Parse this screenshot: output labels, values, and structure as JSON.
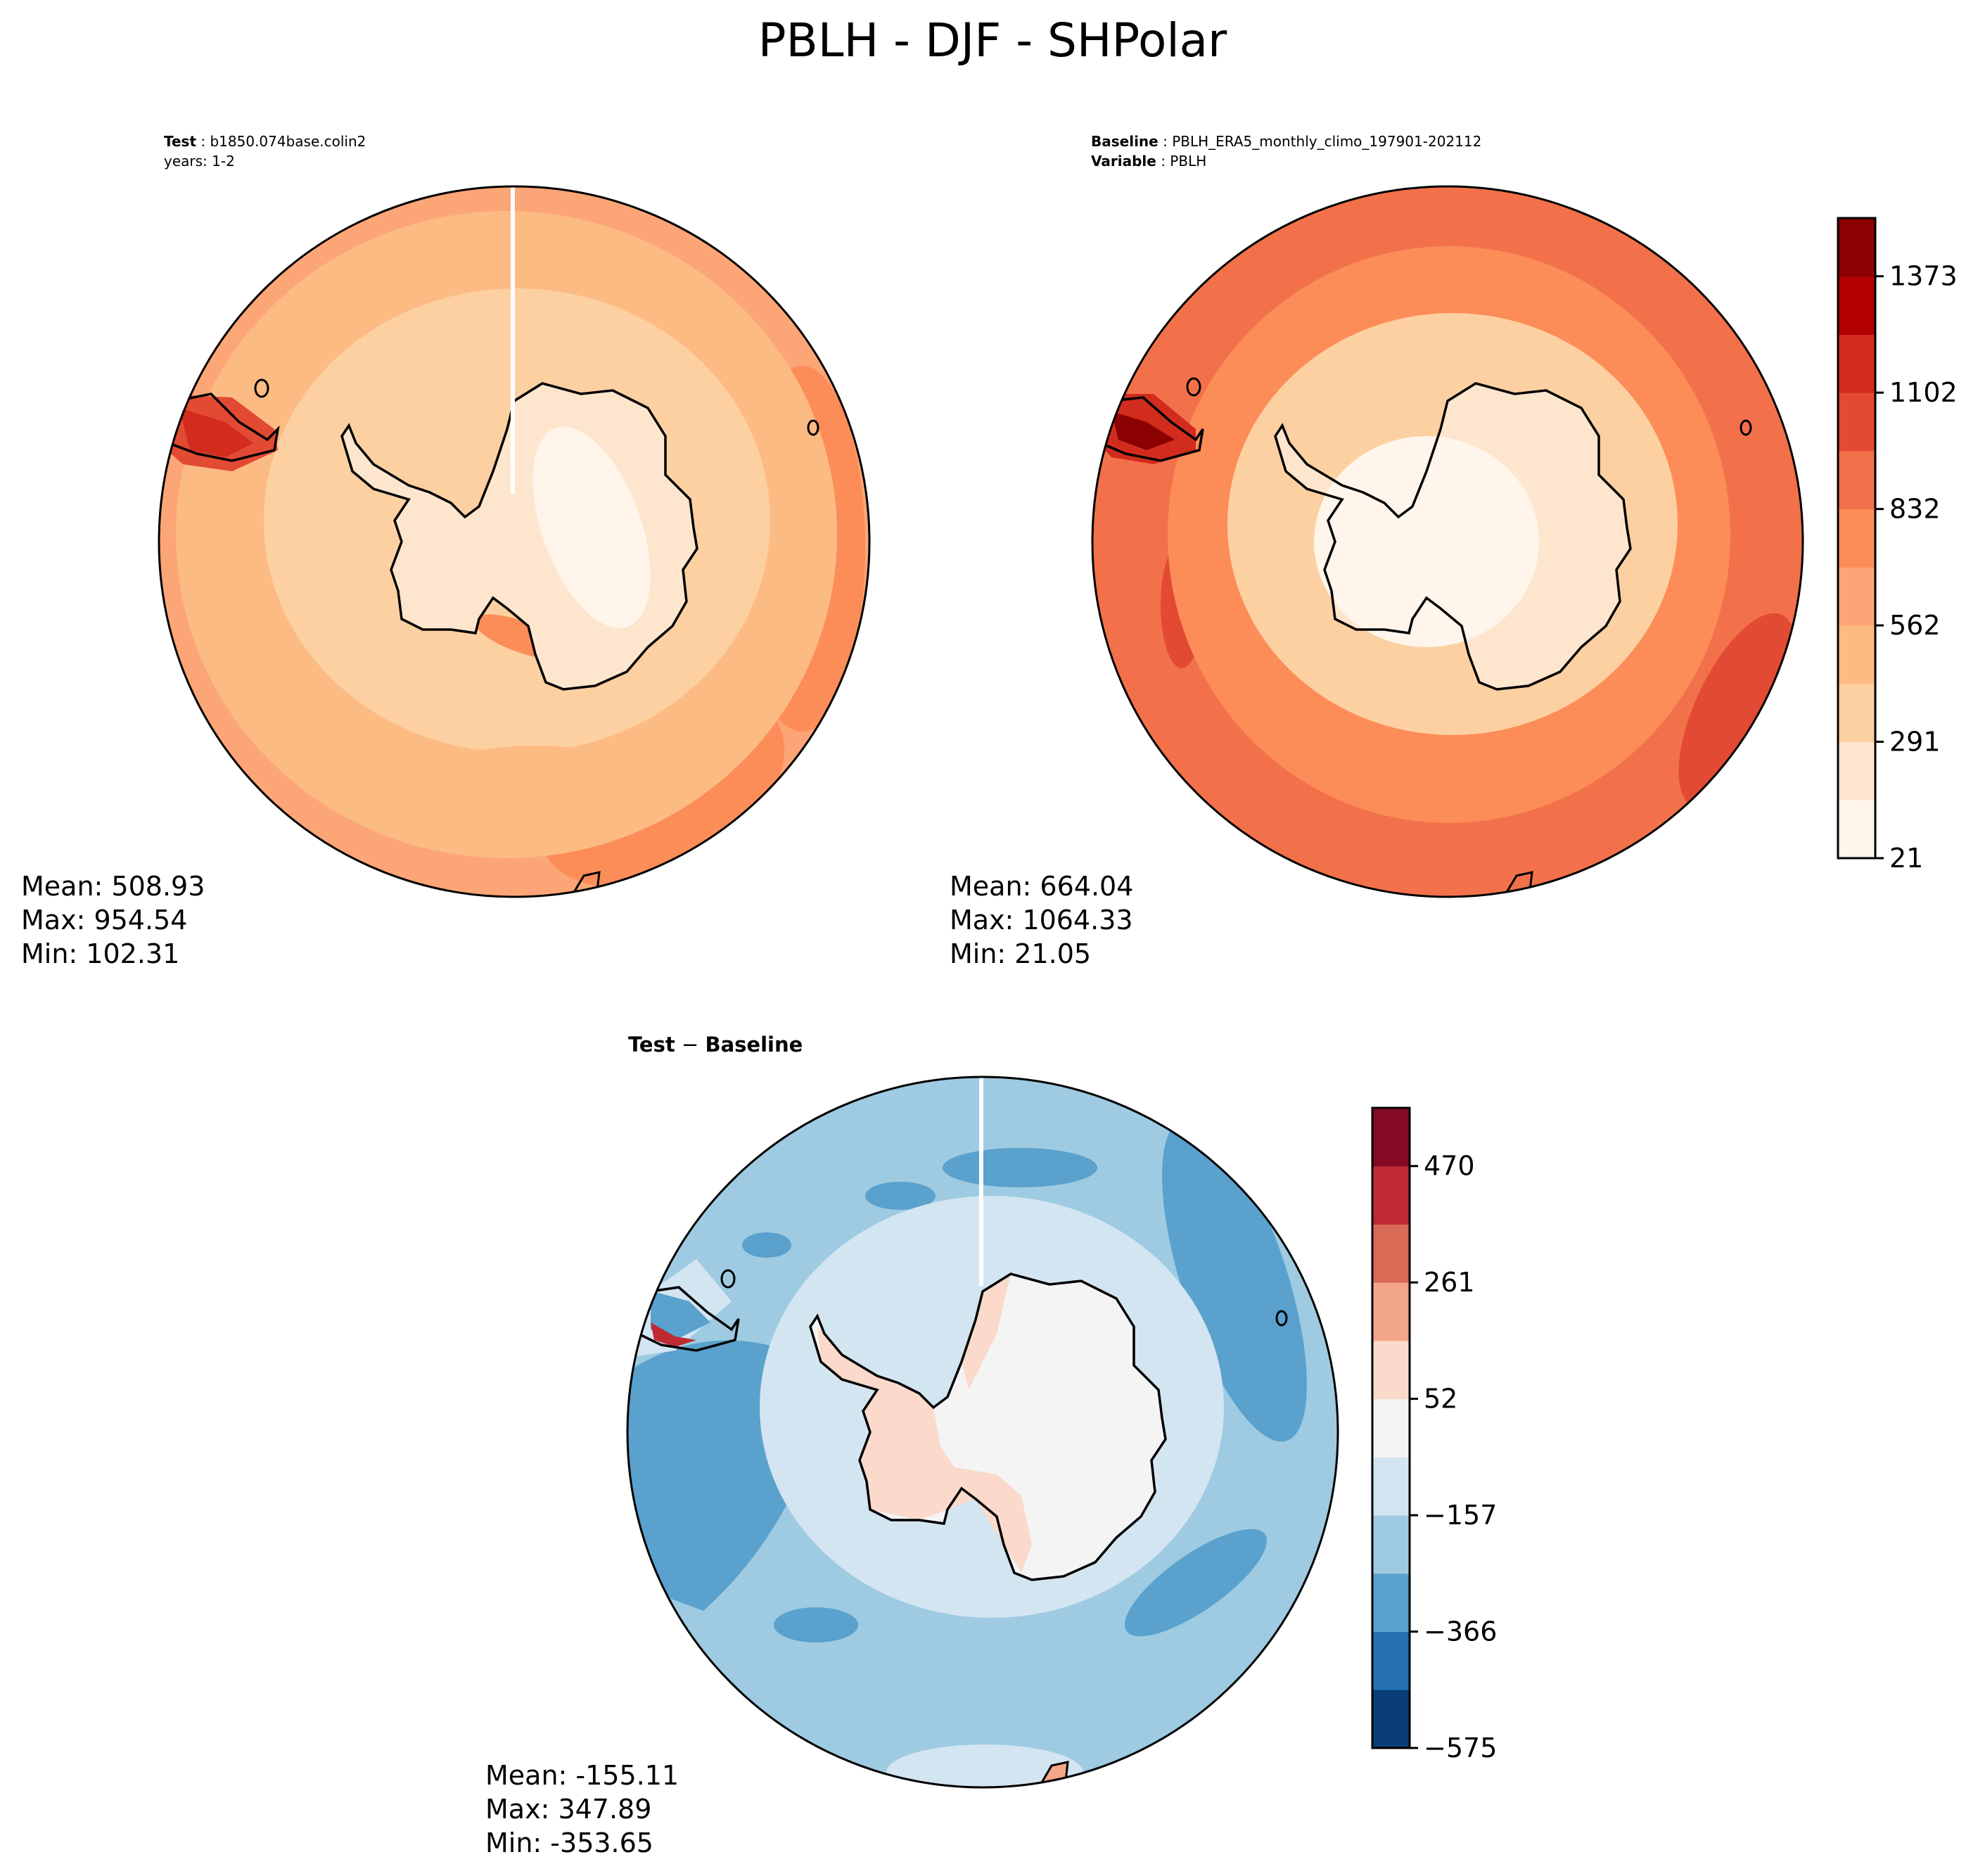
{
  "figure_title": "PBLH - DJF - SHPolar",
  "panels": {
    "test": {
      "label_key": "Test",
      "label_value": "b1850.074base.colin2",
      "line2": "years: 1-2",
      "stats": [
        "Mean: 508.93",
        "Max: 954.54",
        "Min: 102.31"
      ],
      "mean": 508.93,
      "max": 954.54,
      "min": 102.31
    },
    "baseline": {
      "label_key": "Baseline",
      "label_value": "PBLH_ERA5_monthly_climo_197901-202112",
      "line2_key": "Variable",
      "line2_value": "PBLH",
      "stats": [
        "Mean: 664.04",
        "Max: 1064.33",
        "Min: 21.05"
      ],
      "mean": 664.04,
      "max": 1064.33,
      "min": 21.05
    },
    "diff": {
      "title_key": "Test",
      "title_sep": " − ",
      "title_value": "Baseline",
      "stats": [
        "Mean: -155.11",
        "Max: 347.89",
        "Min: -353.65"
      ],
      "mean": -155.11,
      "max": 347.89,
      "min": -353.65
    }
  },
  "colorbars": {
    "levels": {
      "ticks": [
        "21",
        "291",
        "562",
        "832",
        "1102",
        "1373"
      ],
      "colors": [
        "#fff5eb",
        "#fee6ce",
        "#fdd0a2",
        "#fdbb84",
        "#fca577",
        "#fc8d59",
        "#f2714a",
        "#e34a33",
        "#d12c1e",
        "#b30000",
        "#8b0000"
      ]
    },
    "difference": {
      "ticks": [
        "−575",
        "−366",
        "−157",
        "52",
        "261",
        "470"
      ],
      "colors": [
        "#0a3e77",
        "#2470b3",
        "#5aa1cd",
        "#9ecbe1",
        "#d3e5f1",
        "#f4f4f4",
        "#fbdacb",
        "#f3a688",
        "#d96b56",
        "#bf2a33",
        "#840a26"
      ]
    }
  },
  "map_colors": {
    "ocean_test": "#fca577",
    "mid_test": "#fdbb84",
    "inner_test": "#fdd0a2",
    "ice_test": "#fee6ce",
    "ocean_base": "#f2714a",
    "mid_base": "#fc8d59",
    "inner_base": "#fdd0a2",
    "ice_base": "#fee6ce",
    "ocean_diff": "#9ecbe1",
    "band_diff": "#5aa1cd",
    "ring_diff": "#d3e5f1",
    "ice_diff": "#f4f4f4",
    "pos_diff": "#fbdacb",
    "coast": "#000000"
  }
}
